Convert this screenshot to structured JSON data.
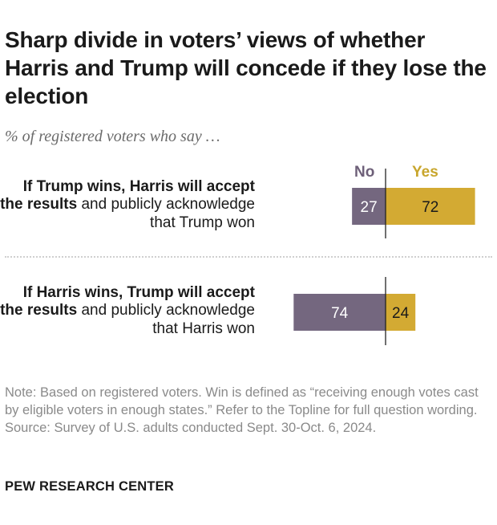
{
  "title": "Sharp divide in voters’ views of whether Harris and Trump will concede if they lose the election",
  "subtitle": "% of registered voters who say …",
  "legend": {
    "no": "No",
    "yes": "Yes"
  },
  "rows": [
    {
      "label_bold": "If Trump wins, Harris will accept the results",
      "label_rest": " and publicly acknowledge that Trump won"
    },
    {
      "label_bold": "If Harris wins, Trump will accept the results",
      "label_rest": " and publicly acknowledge that Harris won"
    }
  ],
  "colors": {
    "no": "#74677f",
    "yes": "#d3aa33",
    "axis": "#222222"
  },
  "chart_data": {
    "type": "bar",
    "orientation": "horizontal-diverging",
    "categories": [
      "If Trump wins, Harris will accept the results and publicly acknowledge that Trump won",
      "If Harris wins, Trump will accept the results and publicly acknowledge that Harris won"
    ],
    "series": [
      {
        "name": "No",
        "values": [
          27,
          74
        ]
      },
      {
        "name": "Yes",
        "values": [
          72,
          24
        ]
      }
    ],
    "unit": "%",
    "title": "Sharp divide in voters’ views of whether Harris and Trump will concede if they lose the election",
    "legend": "top"
  },
  "note": "Note: Based on registered voters. Win is defined as “receiving enough votes cast by eligible voters in enough states.” Refer to the Topline for full question wording.",
  "source": "Source: Survey of U.S. adults conducted Sept. 30-Oct. 6, 2024.",
  "brand": "PEW RESEARCH CENTER"
}
